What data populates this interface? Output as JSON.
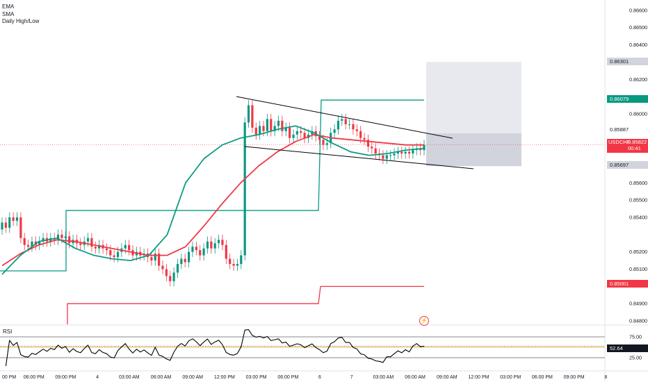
{
  "legend": {
    "items": [
      "EMA",
      "SMA",
      "Daily High/Low"
    ]
  },
  "rsi": {
    "label": "RSI",
    "levels": [
      "75.00",
      "25.00"
    ],
    "value_tag": "52.64"
  },
  "price_axis": {
    "labels": [
      "0.86600",
      "0.86500",
      "0.86400",
      "0.86200",
      "0.86000",
      "0.85600",
      "0.85500",
      "0.85400",
      "0.85200",
      "0.85100",
      "0.84900",
      "0.84800"
    ]
  },
  "price_tags": {
    "target": "0.86301",
    "high": "0.86079",
    "entry": "0.85887",
    "symbol": "USDCHF",
    "last": "0.85822",
    "countdown": "00:41",
    "stop": "0.85697",
    "low": "0.85001"
  },
  "time_axis": {
    "labels": [
      "00 PM",
      "06:00 PM",
      "09:00 PM",
      "4",
      "03:00 AM",
      "06:00 AM",
      "09:00 AM",
      "12:00 PM",
      "03:00 PM",
      "06:00 PM",
      "6",
      "7",
      "03:00 AM",
      "06:00 AM",
      "09:00 AM",
      "12:00 PM",
      "03:00 PM",
      "06:00 PM",
      "09:00 PM",
      "8"
    ]
  },
  "colors": {
    "up": "#089981",
    "down": "#f23645",
    "ema": "#0d9b82",
    "sma": "#f23645",
    "daily_high": "#089981",
    "daily_low": "#f23645",
    "trendline": "#000000",
    "rsi_line": "#000000",
    "grid": "#f0f3fa"
  },
  "chart_data": {
    "type": "candlestick",
    "symbol": "USDCHF",
    "ylim": [
      0.8478,
      0.8666
    ],
    "close_prices": [
      0.8537,
      0.8534,
      0.854,
      0.8538,
      0.854,
      0.8528,
      0.8524,
      0.8523,
      0.8526,
      0.8524,
      0.8526,
      0.8528,
      0.8526,
      0.8528,
      0.8527,
      0.853,
      0.8528,
      0.8529,
      0.8525,
      0.8527,
      0.8525,
      0.8524,
      0.8526,
      0.8528,
      0.8523,
      0.8522,
      0.8524,
      0.8522,
      0.8521,
      0.8518,
      0.8517,
      0.852,
      0.8522,
      0.8524,
      0.8521,
      0.8518,
      0.852,
      0.8518,
      0.8519,
      0.8517,
      0.8515,
      0.8519,
      0.8512,
      0.851,
      0.8506,
      0.8503,
      0.8508,
      0.8513,
      0.8516,
      0.8514,
      0.852,
      0.8523,
      0.8521,
      0.8518,
      0.8522,
      0.8526,
      0.8522,
      0.8525,
      0.8527,
      0.8524,
      0.8516,
      0.8513,
      0.8512,
      0.8513,
      0.8518,
      0.8595,
      0.8605,
      0.8592,
      0.8588,
      0.8593,
      0.859,
      0.8597,
      0.859,
      0.8593,
      0.8596,
      0.859,
      0.8592,
      0.8586,
      0.8588,
      0.859,
      0.8589,
      0.8586,
      0.8588,
      0.859,
      0.8587,
      0.8585,
      0.8582,
      0.8583,
      0.8589,
      0.8591,
      0.8596,
      0.8597,
      0.8594,
      0.8594,
      0.8591,
      0.859,
      0.8586,
      0.8585,
      0.8581,
      0.858,
      0.8577,
      0.8576,
      0.8574,
      0.8576,
      0.8576,
      0.8577,
      0.8578,
      0.8577,
      0.8578,
      0.8577,
      0.8579,
      0.858,
      0.8579,
      0.8582
    ],
    "ema_values": [
      0.8507,
      0.8518,
      0.8526,
      0.8528,
      0.8522,
      0.8518,
      0.8516,
      0.8515,
      0.8518,
      0.853,
      0.856,
      0.8574,
      0.8582,
      0.8586,
      0.8588,
      0.8591,
      0.8593,
      0.8589,
      0.8583,
      0.8578,
      0.8576,
      0.8577,
      0.8579,
      0.858
    ],
    "sma_values": [
      0.8512,
      0.8519,
      0.8524,
      0.8527,
      0.8526,
      0.8524,
      0.8522,
      0.852,
      0.8518,
      0.8518,
      0.8523,
      0.8535,
      0.8548,
      0.856,
      0.857,
      0.8578,
      0.8584,
      0.8588,
      0.8586,
      0.8585,
      0.8584,
      0.8583,
      0.8582,
      0.8582
    ],
    "daily_high": [
      {
        "from": "00 PM",
        "value": 0.8509
      },
      {
        "from": "09:00 PM",
        "value": 0.8544
      },
      {
        "from": "12:00 PM",
        "value": 0.8544
      },
      {
        "from": "6",
        "value": 0.8608
      }
    ],
    "daily_low": [
      {
        "from": "09:00 PM",
        "value": 0.849
      },
      {
        "from": "6",
        "value": 0.85
      }
    ],
    "position": {
      "target": 0.86301,
      "entry": 0.85887,
      "stop": 0.85697
    },
    "last_price": 0.85822,
    "rsi": {
      "ylim": [
        0,
        100
      ],
      "levels": [
        75,
        25
      ],
      "last": 52.64
    }
  }
}
